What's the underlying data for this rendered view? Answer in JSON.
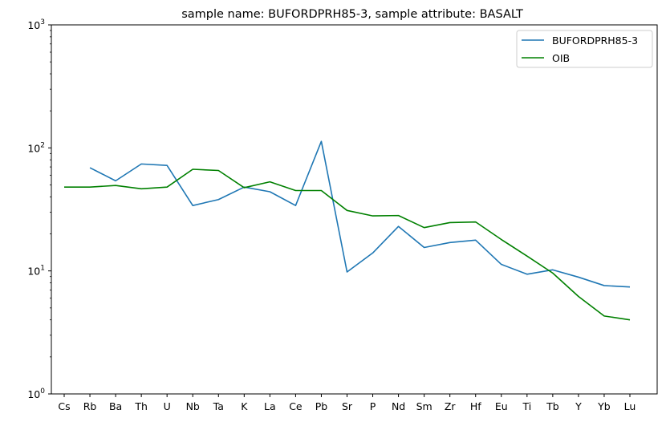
{
  "chart_data": {
    "type": "line",
    "title": "sample name: BUFORDPRH85-3, sample attribute: BASALT",
    "xlabel": "",
    "ylabel": "",
    "yscale": "log",
    "ylim": [
      1,
      1000
    ],
    "yticks": [
      {
        "value": 1,
        "label": "10",
        "exp": "0"
      },
      {
        "value": 10,
        "label": "10",
        "exp": "1"
      },
      {
        "value": 100,
        "label": "10",
        "exp": "2"
      },
      {
        "value": 1000,
        "label": "10",
        "exp": "3"
      }
    ],
    "categories": [
      "Cs",
      "Rb",
      "Ba",
      "Th",
      "U",
      "Nb",
      "Ta",
      "K",
      "La",
      "Ce",
      "Pb",
      "Sr",
      "P",
      "Nd",
      "Sm",
      "Zr",
      "Hf",
      "Eu",
      "Ti",
      "Tb",
      "Y",
      "Yb",
      "Lu"
    ],
    "grid": false,
    "legend_position": "top-right",
    "series": [
      {
        "name": "BUFORDPRH85-3",
        "color": "#1f77b4",
        "values": [
          null,
          69,
          54,
          74,
          72,
          34,
          38,
          48,
          44,
          34,
          113,
          9.8,
          14,
          23,
          15.5,
          17,
          17.8,
          11.3,
          9.4,
          10.2,
          8.9,
          7.6,
          7.4
        ]
      },
      {
        "name": "OIB",
        "color": "#008000",
        "values": [
          48,
          48,
          49.5,
          46.5,
          48,
          67,
          65.5,
          47.5,
          53,
          45,
          45,
          31,
          28,
          28.2,
          22.5,
          24.7,
          25,
          18,
          13.2,
          9.6,
          6.2,
          4.3,
          4.0
        ]
      }
    ]
  }
}
